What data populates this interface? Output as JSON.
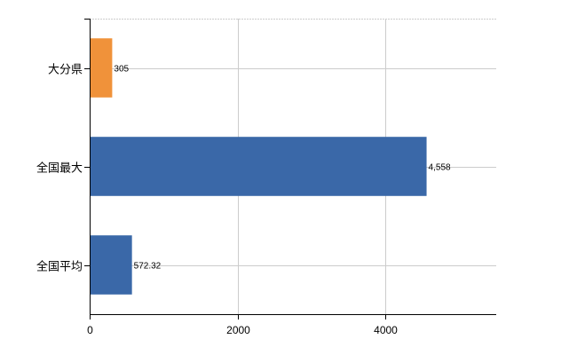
{
  "chart_data": {
    "type": "bar",
    "orientation": "horizontal",
    "categories": [
      "大分県",
      "全国最大",
      "全国平均"
    ],
    "values": [
      305,
      4558,
      572.32
    ],
    "value_labels": [
      "305",
      "4,558",
      "572.32"
    ],
    "bar_colors": [
      "#F0923A",
      "#3A68A8",
      "#3A68A8"
    ],
    "title": "",
    "xlabel": "",
    "ylabel": "",
    "xlim": [
      0,
      5500
    ],
    "x_ticks": [
      0,
      2000,
      4000
    ],
    "x_tick_labels": [
      "0",
      "2000",
      "4000"
    ],
    "grid": true,
    "legend": false
  }
}
